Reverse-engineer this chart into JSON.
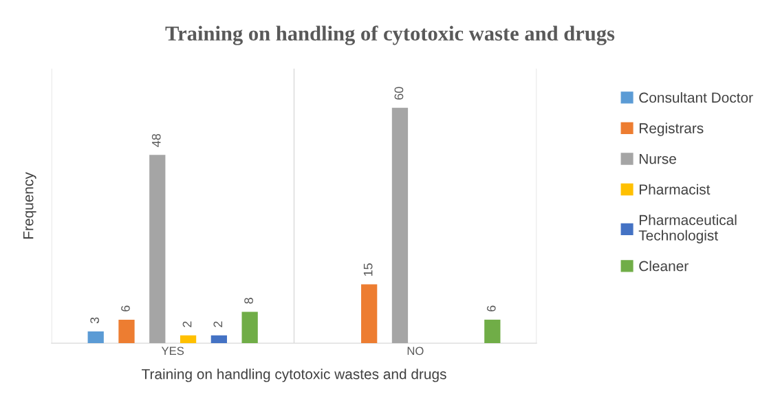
{
  "chart_data": {
    "type": "bar",
    "title": "Training on handling of cytotoxic waste and drugs",
    "xlabel": "Training on handling cytotoxic wastes and drugs",
    "ylabel": "Frequency",
    "categories": [
      "YES",
      "NO"
    ],
    "series": [
      {
        "name": "Consultant Doctor",
        "color": "#5b9bd5",
        "values": [
          3,
          null
        ]
      },
      {
        "name": "Registrars",
        "color": "#ed7d31",
        "values": [
          6,
          15
        ]
      },
      {
        "name": "Nurse",
        "color": "#a5a5a5",
        "values": [
          48,
          60
        ]
      },
      {
        "name": "Pharmacist",
        "color": "#ffc000",
        "values": [
          2,
          null
        ]
      },
      {
        "name": "Pharmaceutical\nTechnologist",
        "color": "#4472c4",
        "values": [
          2,
          null
        ]
      },
      {
        "name": "Cleaner",
        "color": "#70ad47",
        "values": [
          8,
          6
        ]
      }
    ],
    "ylim": [
      0,
      70
    ],
    "tick_labels": "x",
    "data_labels": true,
    "grid": "x",
    "legend": "right"
  }
}
